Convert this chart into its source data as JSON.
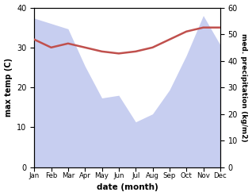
{
  "months": [
    "Jan",
    "Feb",
    "Mar",
    "Apr",
    "May",
    "Jun",
    "Jul",
    "Aug",
    "Sep",
    "Oct",
    "Nov",
    "Dec"
  ],
  "precipitation": [
    56,
    54,
    52,
    38,
    26,
    27,
    17,
    20,
    29,
    42,
    57,
    46
  ],
  "temperature": [
    32,
    30,
    31,
    30,
    29,
    28.5,
    29,
    30,
    32,
    34,
    35,
    35
  ],
  "temp_ylim": [
    0,
    40
  ],
  "precip_ylim": [
    0,
    60
  ],
  "fill_color": "#aab4e8",
  "fill_alpha": 0.65,
  "line_color": "#c0504d",
  "line_width": 1.8,
  "ylabel_left": "max temp (C)",
  "ylabel_right": "med. precipitation (kg/m2)",
  "xlabel": "date (month)",
  "bg_color": "#ffffff"
}
